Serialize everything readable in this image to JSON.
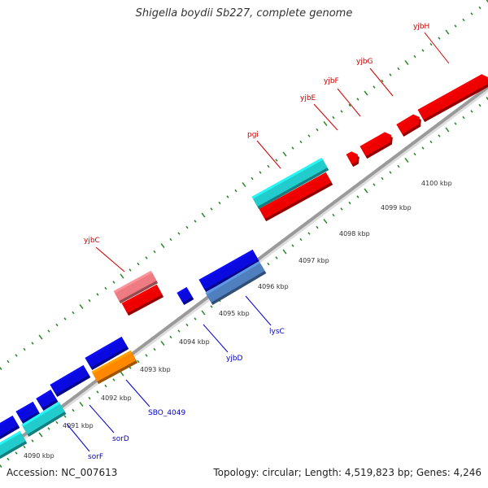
{
  "title": "Shigella boydii Sb227, complete genome",
  "footer": {
    "accession": "Accession: NC_007613",
    "summary": "Topology: circular; Length: 4,519,823 bp; Genes: 4,246"
  },
  "colors": {
    "backbone": "#9a9a9a",
    "tick": "#2e8b2e",
    "label_forward": "#cc0000",
    "label_reverse": "#0000cc",
    "gene_red": "#ee0000",
    "gene_pink": "#ee7a82",
    "gene_cyan": "#22cccc",
    "gene_blue": "#0a0ae0",
    "gene_steelblue": "#4f7fbf",
    "gene_orange": "#ff8800"
  },
  "kbp_labels": [
    {
      "kbp": 4090,
      "text": "4090 kbp"
    },
    {
      "kbp": 4091,
      "text": "4091 kbp"
    },
    {
      "kbp": 4092,
      "text": "4092 kbp"
    },
    {
      "kbp": 4093,
      "text": "4093 kbp"
    },
    {
      "kbp": 4094,
      "text": "4094 kbp"
    },
    {
      "kbp": 4095,
      "text": "4095 kbp"
    },
    {
      "kbp": 4096,
      "text": "4096 kbp"
    },
    {
      "kbp": 4097,
      "text": "4097 kbp"
    },
    {
      "kbp": 4098,
      "text": "4098 kbp"
    },
    {
      "kbp": 4099,
      "text": "4099 kbp"
    },
    {
      "kbp": 4100,
      "text": "4100 kbp"
    }
  ],
  "gene_labels": [
    {
      "text": "yjbH",
      "strand": "forward"
    },
    {
      "text": "yjbG",
      "strand": "forward"
    },
    {
      "text": "yjbF",
      "strand": "forward"
    },
    {
      "text": "yjbE",
      "strand": "forward"
    },
    {
      "text": "pgi",
      "strand": "forward"
    },
    {
      "text": "yjbC",
      "strand": "forward"
    },
    {
      "text": "lysC",
      "strand": "reverse"
    },
    {
      "text": "yjbD",
      "strand": "reverse"
    },
    {
      "text": "SBO_4049",
      "strand": "reverse"
    },
    {
      "text": "sorD",
      "strand": "reverse"
    },
    {
      "text": "sorF",
      "strand": "reverse"
    }
  ]
}
